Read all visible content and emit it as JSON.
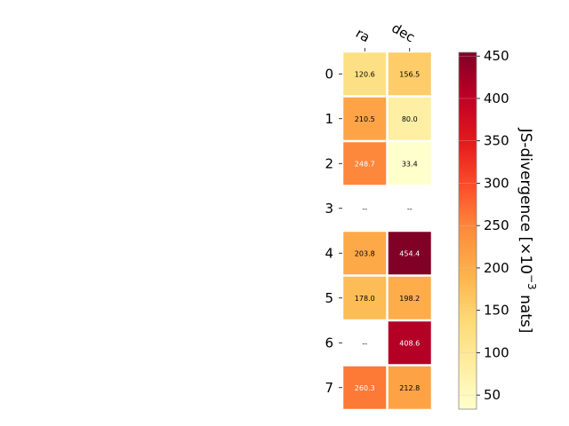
{
  "chart_data": {
    "type": "heatmap",
    "columns": [
      "ra",
      "dec"
    ],
    "rows": [
      "0",
      "1",
      "2",
      "3",
      "4",
      "5",
      "6",
      "7"
    ],
    "values": [
      [
        120.6,
        156.5
      ],
      [
        210.5,
        80.0
      ],
      [
        248.7,
        33.4
      ],
      [
        null,
        null
      ],
      [
        203.8,
        454.4
      ],
      [
        178.0,
        198.2
      ],
      [
        null,
        408.6
      ],
      [
        260.3,
        212.8
      ]
    ],
    "labels": [
      [
        "120.6",
        "156.5"
      ],
      [
        "210.5",
        "80.0"
      ],
      [
        "248.7",
        "33.4"
      ],
      [
        "--",
        "--"
      ],
      [
        "203.8",
        "454.4"
      ],
      [
        "178.0",
        "198.2"
      ],
      [
        "--",
        "408.6"
      ],
      [
        "260.3",
        "212.8"
      ]
    ],
    "colorbar": {
      "label_main": "JS-divergence [×10",
      "label_exp": "−3",
      "label_unit": " nats]",
      "range": [
        33.4,
        454.4
      ],
      "ticks": [
        50,
        100,
        150,
        200,
        250,
        300,
        350,
        400,
        450
      ],
      "colormap": "YlOrRd"
    }
  }
}
